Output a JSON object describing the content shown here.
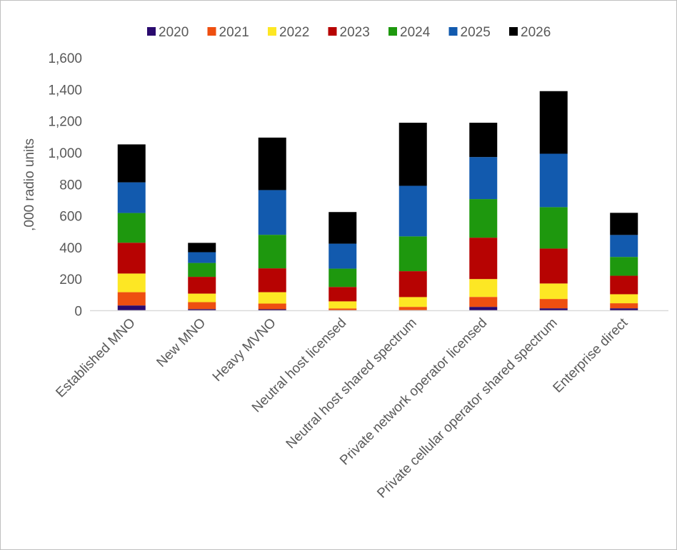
{
  "chart_data": {
    "type": "bar",
    "stacked": true,
    "title": "",
    "xlabel": "",
    "ylabel": ",000 radio units",
    "ylim": [
      0,
      1600
    ],
    "yticks": [
      0,
      200,
      400,
      600,
      800,
      1000,
      1200,
      1400,
      1600
    ],
    "ytick_labels": [
      "0",
      "200",
      "400",
      "600",
      "800",
      "1,000",
      "1,200",
      "1,400",
      "1,600"
    ],
    "grid": false,
    "legend_position": "top",
    "categories": [
      "Established MNO",
      "New MNO",
      "Heavy MVNO",
      "Neutral host licensed",
      "Neutral host shared spectrum",
      "Private network operator licensed",
      "Private cellular operator shared spectrum",
      "Enterprise direct"
    ],
    "series": [
      {
        "name": "2020",
        "color": "#2a0a6e",
        "values": [
          33,
          10,
          9,
          3,
          3,
          24,
          15,
          15
        ]
      },
      {
        "name": "2021",
        "color": "#ee4f10",
        "values": [
          84,
          44,
          36,
          11,
          21,
          63,
          59,
          32
        ]
      },
      {
        "name": "2022",
        "color": "#fde724",
        "values": [
          118,
          54,
          72,
          45,
          62,
          113,
          98,
          57
        ]
      },
      {
        "name": "2023",
        "color": "#b70302",
        "values": [
          195,
          106,
          151,
          91,
          164,
          262,
          221,
          117
        ]
      },
      {
        "name": "2024",
        "color": "#1e980e",
        "values": [
          188,
          88,
          212,
          116,
          220,
          244,
          262,
          119
        ]
      },
      {
        "name": "2025",
        "color": "#125aae",
        "values": [
          194,
          68,
          283,
          158,
          320,
          266,
          338,
          139
        ]
      },
      {
        "name": "2026",
        "color": "#000000",
        "values": [
          240,
          59,
          332,
          200,
          399,
          217,
          396,
          140
        ]
      }
    ]
  }
}
